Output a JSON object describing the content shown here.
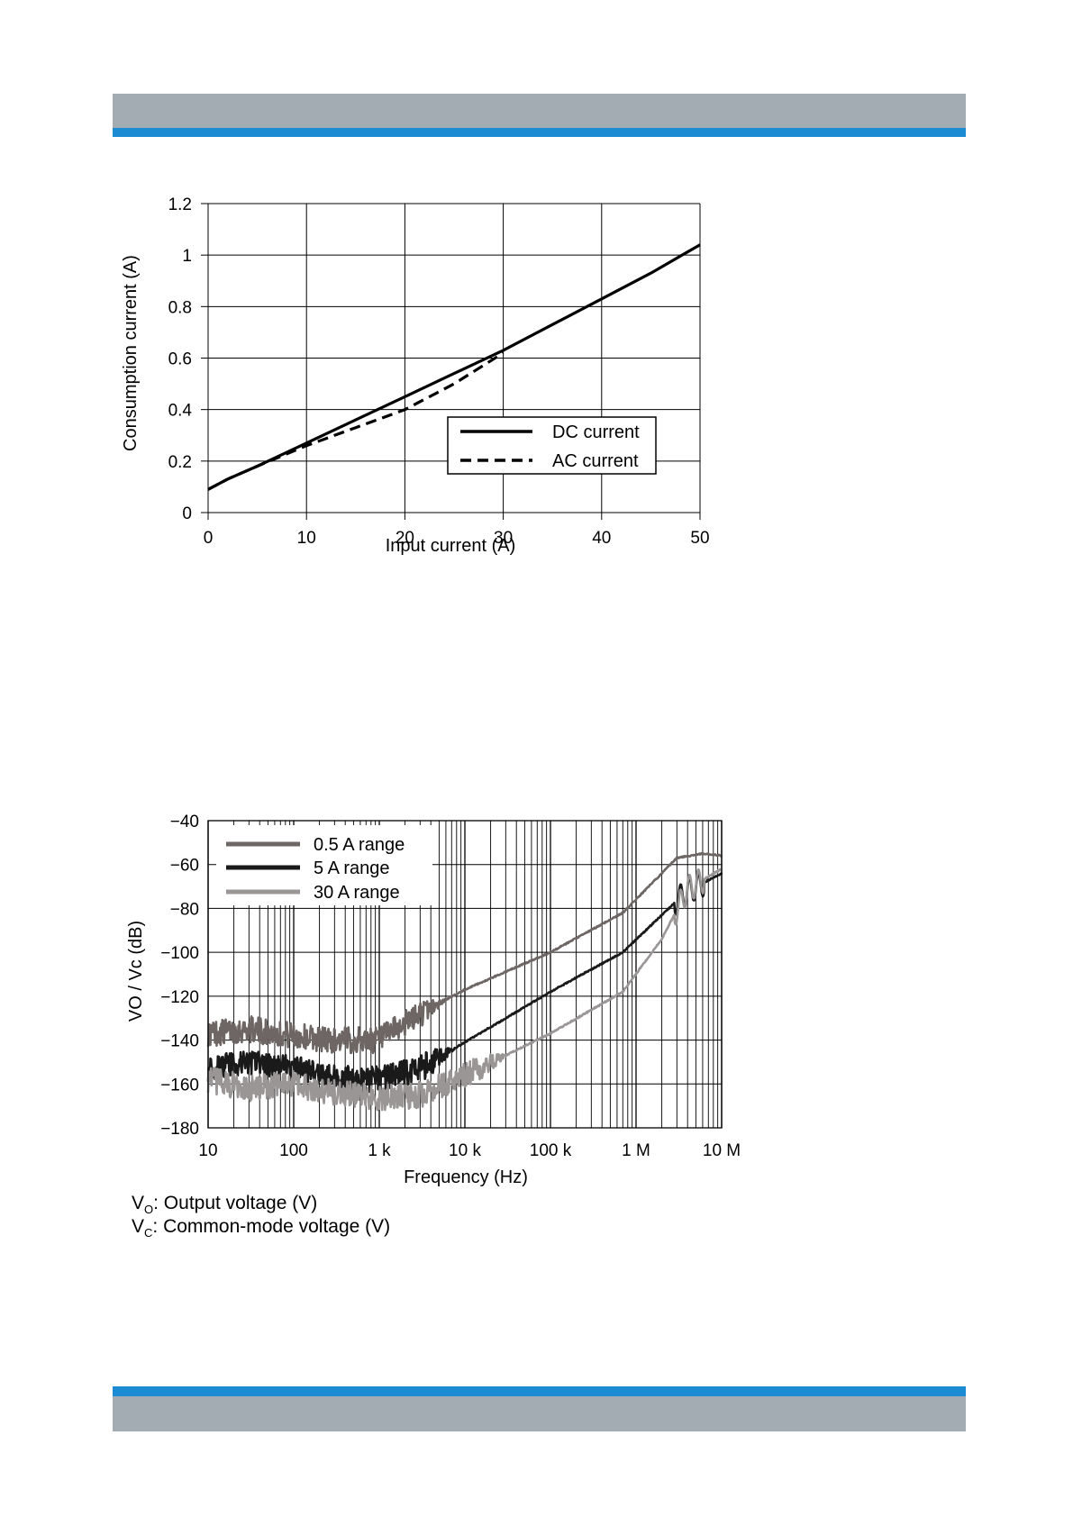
{
  "colors": {
    "band_gray": "#a4acb3",
    "band_blue": "#1d8bd4"
  },
  "chart_data": [
    {
      "type": "line",
      "title": "",
      "xlabel": "Input current (A)",
      "ylabel": "Consumption current (A)",
      "xlim": [
        0,
        50
      ],
      "ylim": [
        0,
        1.2
      ],
      "x_ticks": [
        "0",
        "10",
        "20",
        "30",
        "40",
        "50"
      ],
      "y_ticks": [
        "0",
        "0.2",
        "0.4",
        "0.6",
        "0.8",
        "1",
        "1.2"
      ],
      "grid": true,
      "legend": "bottom-right",
      "series": [
        {
          "name": "DC current",
          "style": "solid",
          "x": [
            0,
            2,
            5,
            10,
            15,
            20,
            25,
            30,
            35,
            40,
            45,
            50
          ],
          "y": [
            0.09,
            0.13,
            0.18,
            0.27,
            0.36,
            0.45,
            0.54,
            0.63,
            0.73,
            0.83,
            0.93,
            1.04
          ]
        },
        {
          "name": "AC current",
          "style": "dashed",
          "x": [
            0,
            2,
            5,
            10,
            15,
            20,
            25,
            30
          ],
          "y": [
            0.09,
            0.13,
            0.18,
            0.26,
            0.33,
            0.4,
            0.5,
            0.62
          ]
        }
      ]
    },
    {
      "type": "line",
      "title": "",
      "xlabel": "Frequency (Hz)",
      "ylabel": "VO / Vc (dB)",
      "xscale": "log",
      "xlim": [
        10,
        10000000
      ],
      "ylim": [
        -180,
        -40
      ],
      "x_ticks": [
        "10",
        "100",
        "1 k",
        "10 k",
        "100 k",
        "1 M",
        "10 M"
      ],
      "y_ticks": [
        "−40",
        "−60",
        "−80",
        "−100",
        "−120",
        "−140",
        "−160",
        "−180"
      ],
      "grid": true,
      "legend": "top-left",
      "series": [
        {
          "name": "0.5 A range",
          "color": "#6e6664",
          "x": [
            10,
            30,
            100,
            300,
            1000,
            3000,
            10000,
            100000,
            700000,
            3000000,
            6000000,
            10000000
          ],
          "y": [
            -137,
            -135,
            -138,
            -140,
            -140,
            -128,
            -117,
            -100,
            -82,
            -57,
            -55,
            -56
          ]
        },
        {
          "name": "5 A range",
          "color": "#1a1a1a",
          "x": [
            10,
            30,
            100,
            300,
            1000,
            3000,
            10000,
            100000,
            700000,
            2000000,
            4000000,
            10000000
          ],
          "y": [
            -153,
            -150,
            -153,
            -157,
            -158,
            -153,
            -141,
            -118,
            -100,
            -83,
            -72,
            -64
          ]
        },
        {
          "name": "30 A range",
          "color": "#9a9696",
          "x": [
            10,
            30,
            100,
            300,
            1000,
            3000,
            10000,
            100000,
            700000,
            2000000,
            4000000,
            10000000
          ],
          "y": [
            -158,
            -162,
            -160,
            -164,
            -166,
            -165,
            -156,
            -137,
            -118,
            -94,
            -71,
            -62
          ]
        }
      ]
    }
  ],
  "notes": {
    "vo_prefix": "V",
    "vo_sub": "O",
    "vo_text": ": Output voltage (V)",
    "vc_prefix": "V",
    "vc_sub": "C",
    "vc_text": ": Common-mode voltage (V)"
  }
}
